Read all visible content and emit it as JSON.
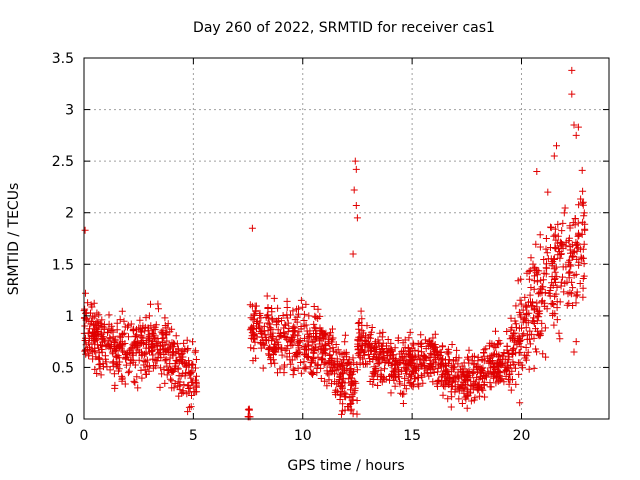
{
  "chart_data": {
    "type": "scatter",
    "title": "Day 260 of 2022, SRMTID for receiver cas1",
    "xlabel": "GPS time / hours",
    "ylabel": "SRMTID / TECUs",
    "xlim": [
      0,
      24
    ],
    "ylim": [
      0,
      3.5
    ],
    "xticks": [
      "0",
      "5",
      "10",
      "15",
      "20"
    ],
    "yticks": [
      "0",
      "0.5",
      "1",
      "1.5",
      "2",
      "2.5",
      "3",
      "3.5"
    ],
    "grid": true,
    "marker": "+",
    "color": "#e00000",
    "segments": [
      {
        "start": 0.0,
        "end": 5.15,
        "base": [
          0.95,
          0.75,
          0.7,
          0.65,
          0.7,
          0.75,
          0.6,
          0.5,
          0.4
        ],
        "spread": 0.28
      },
      {
        "start": 7.5,
        "end": 7.6,
        "base": [
          0.02,
          0.02
        ],
        "spread": 0.01
      },
      {
        "start": 7.6,
        "end": 12.5,
        "base": [
          0.9,
          0.85,
          0.8,
          0.75,
          0.75,
          0.7,
          0.6,
          0.45,
          0.35
        ],
        "spread": 0.3
      },
      {
        "start": 12.5,
        "end": 19.5,
        "base": [
          0.8,
          0.6,
          0.55,
          0.5,
          0.55,
          0.6,
          0.45,
          0.35,
          0.45,
          0.55,
          0.55
        ],
        "spread": 0.22
      },
      {
        "start": 19.5,
        "end": 22.9,
        "base": [
          0.6,
          0.9,
          1.1,
          1.3,
          1.5,
          1.6,
          1.8
        ],
        "spread": 0.5
      }
    ],
    "highlights": [
      {
        "x": 0.05,
        "y": 1.83
      },
      {
        "x": 7.7,
        "y": 1.85
      },
      {
        "x": 12.4,
        "y": 2.5
      },
      {
        "x": 12.45,
        "y": 2.42
      },
      {
        "x": 12.35,
        "y": 2.22
      },
      {
        "x": 12.45,
        "y": 2.07
      },
      {
        "x": 12.5,
        "y": 1.95
      },
      {
        "x": 12.3,
        "y": 1.6
      },
      {
        "x": 12.2,
        "y": 0.08
      },
      {
        "x": 12.3,
        "y": 0.05
      },
      {
        "x": 12.1,
        "y": 0.12
      },
      {
        "x": 20.7,
        "y": 2.4
      },
      {
        "x": 21.2,
        "y": 2.2
      },
      {
        "x": 21.5,
        "y": 2.55
      },
      {
        "x": 21.6,
        "y": 2.65
      },
      {
        "x": 22.3,
        "y": 3.38
      },
      {
        "x": 22.3,
        "y": 3.15
      },
      {
        "x": 22.4,
        "y": 2.85
      },
      {
        "x": 22.6,
        "y": 2.83
      },
      {
        "x": 22.5,
        "y": 2.75
      },
      {
        "x": 22.4,
        "y": 0.65
      },
      {
        "x": 22.5,
        "y": 0.75
      },
      {
        "x": 21.1,
        "y": 0.6
      },
      {
        "x": 17.3,
        "y": 0.15
      },
      {
        "x": 14.6,
        "y": 0.15
      },
      {
        "x": 12.2,
        "y": 0.15
      },
      {
        "x": 4.9,
        "y": 0.12
      }
    ]
  }
}
